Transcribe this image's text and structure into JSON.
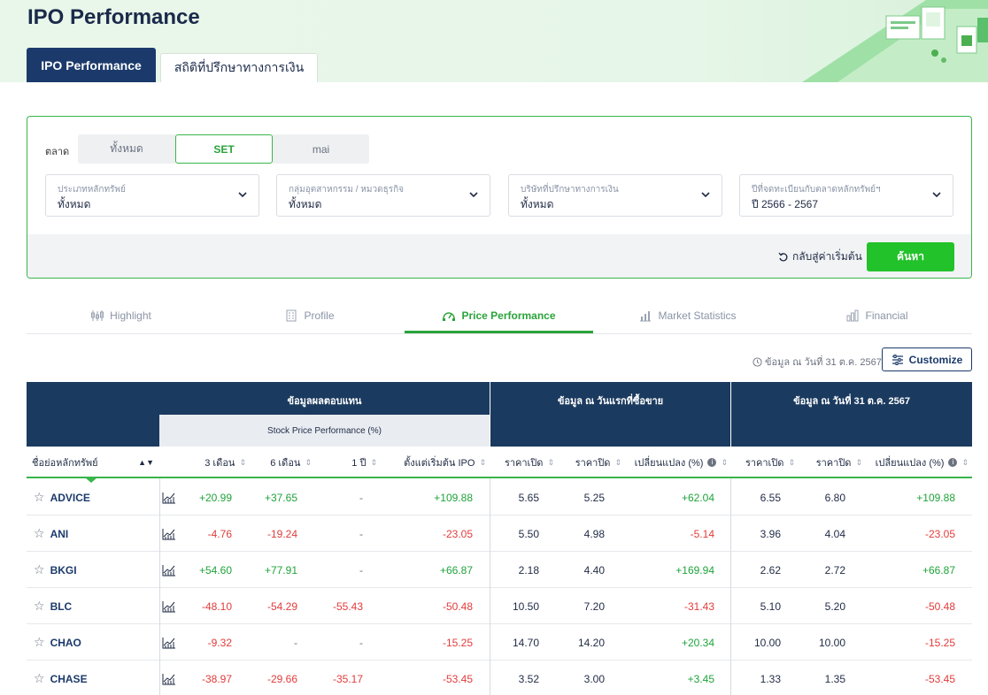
{
  "header": {
    "title": "IPO Performance",
    "tabs": [
      {
        "label": "IPO Performance",
        "active": true
      },
      {
        "label": "สถิติที่ปรึกษาทางการเงิน",
        "active": false
      }
    ]
  },
  "filters": {
    "market_label": "ตลาด",
    "market_options": [
      "ทั้งหมด",
      "SET",
      "mai"
    ],
    "market_selected": "SET",
    "dropdowns": [
      {
        "label": "ประเภทหลักทรัพย์",
        "value": "ทั้งหมด"
      },
      {
        "label": "กลุ่มอุตสาหกรรม / หมวดธุรกิจ",
        "value": "ทั้งหมด"
      },
      {
        "label": "บริษัทที่ปรึกษาทางการเงิน",
        "value": "ทั้งหมด"
      },
      {
        "label": "ปีที่จดทะเบียนกับตลาดหลักทรัพย์ฯ",
        "value": "ปี 2566 - 2567"
      }
    ],
    "reset_label": "กลับสู่ค่าเริ่มต้น",
    "search_label": "ค้นหา"
  },
  "section_tabs": [
    {
      "label": "Highlight",
      "icon": "candlestick-icon"
    },
    {
      "label": "Profile",
      "icon": "building-icon"
    },
    {
      "label": "Price Performance",
      "icon": "gauge-icon",
      "active": true
    },
    {
      "label": "Market Statistics",
      "icon": "bar-chart-icon"
    },
    {
      "label": "Financial",
      "icon": "finance-chart-icon"
    }
  ],
  "as_of": "ข้อมูล ณ วันที่ 31 ต.ค. 2567",
  "customize_label": "Customize",
  "table": {
    "group_headers": {
      "returns": "ข้อมูลผลตอบแทน",
      "returns_sub": "Stock Price Performance (%)",
      "first_day": "ข้อมูล ณ วันแรกที่ซื้อขาย",
      "as_of_day": "ข้อมูล ณ วันที่ 31 ต.ค. 2567"
    },
    "columns": {
      "symbol": "ชื่อย่อหลักทรัพย์",
      "m3": "3 เดือน",
      "m6": "6 เดือน",
      "y1": "1 ปี",
      "since_ipo": "ตั้งแต่เริ่มต้น IPO",
      "open1": "ราคาเปิด",
      "close1": "ราคาปิด",
      "chg1": "เปลี่ยนแปลง (%)",
      "open2": "ราคาเปิด",
      "close2": "ราคาปิด",
      "chg2": "เปลี่ยนแปลง (%)"
    },
    "rows": [
      {
        "symbol": "ADVICE",
        "m3": "+20.99",
        "m6": "+37.65",
        "y1": "-",
        "ipo": "+109.88",
        "open1": "5.65",
        "close1": "5.25",
        "chg1": "+62.04",
        "open2": "6.55",
        "close2": "6.80",
        "chg2": "+109.88"
      },
      {
        "symbol": "ANI",
        "m3": "-4.76",
        "m6": "-19.24",
        "y1": "-",
        "ipo": "-23.05",
        "open1": "5.50",
        "close1": "4.98",
        "chg1": "-5.14",
        "open2": "3.96",
        "close2": "4.04",
        "chg2": "-23.05"
      },
      {
        "symbol": "BKGI",
        "m3": "+54.60",
        "m6": "+77.91",
        "y1": "-",
        "ipo": "+66.87",
        "open1": "2.18",
        "close1": "4.40",
        "chg1": "+169.94",
        "open2": "2.62",
        "close2": "2.72",
        "chg2": "+66.87"
      },
      {
        "symbol": "BLC",
        "m3": "-48.10",
        "m6": "-54.29",
        "y1": "-55.43",
        "ipo": "-50.48",
        "open1": "10.50",
        "close1": "7.20",
        "chg1": "-31.43",
        "open2": "5.10",
        "close2": "5.20",
        "chg2": "-50.48"
      },
      {
        "symbol": "CHAO",
        "m3": "-9.32",
        "m6": "-",
        "y1": "-",
        "ipo": "-15.25",
        "open1": "14.70",
        "close1": "14.20",
        "chg1": "+20.34",
        "open2": "10.00",
        "close2": "10.00",
        "chg2": "-15.25"
      },
      {
        "symbol": "CHASE",
        "m3": "-38.97",
        "m6": "-29.66",
        "y1": "-35.17",
        "ipo": "-53.45",
        "open1": "3.52",
        "close1": "3.00",
        "chg1": "+3.45",
        "open2": "1.33",
        "close2": "1.35",
        "chg2": "-53.45"
      }
    ]
  },
  "colors": {
    "brand_navy": "#1b3a6b",
    "accent_green": "#22c22a",
    "positive": "#1fa33a",
    "negative": "#e23b3b"
  }
}
